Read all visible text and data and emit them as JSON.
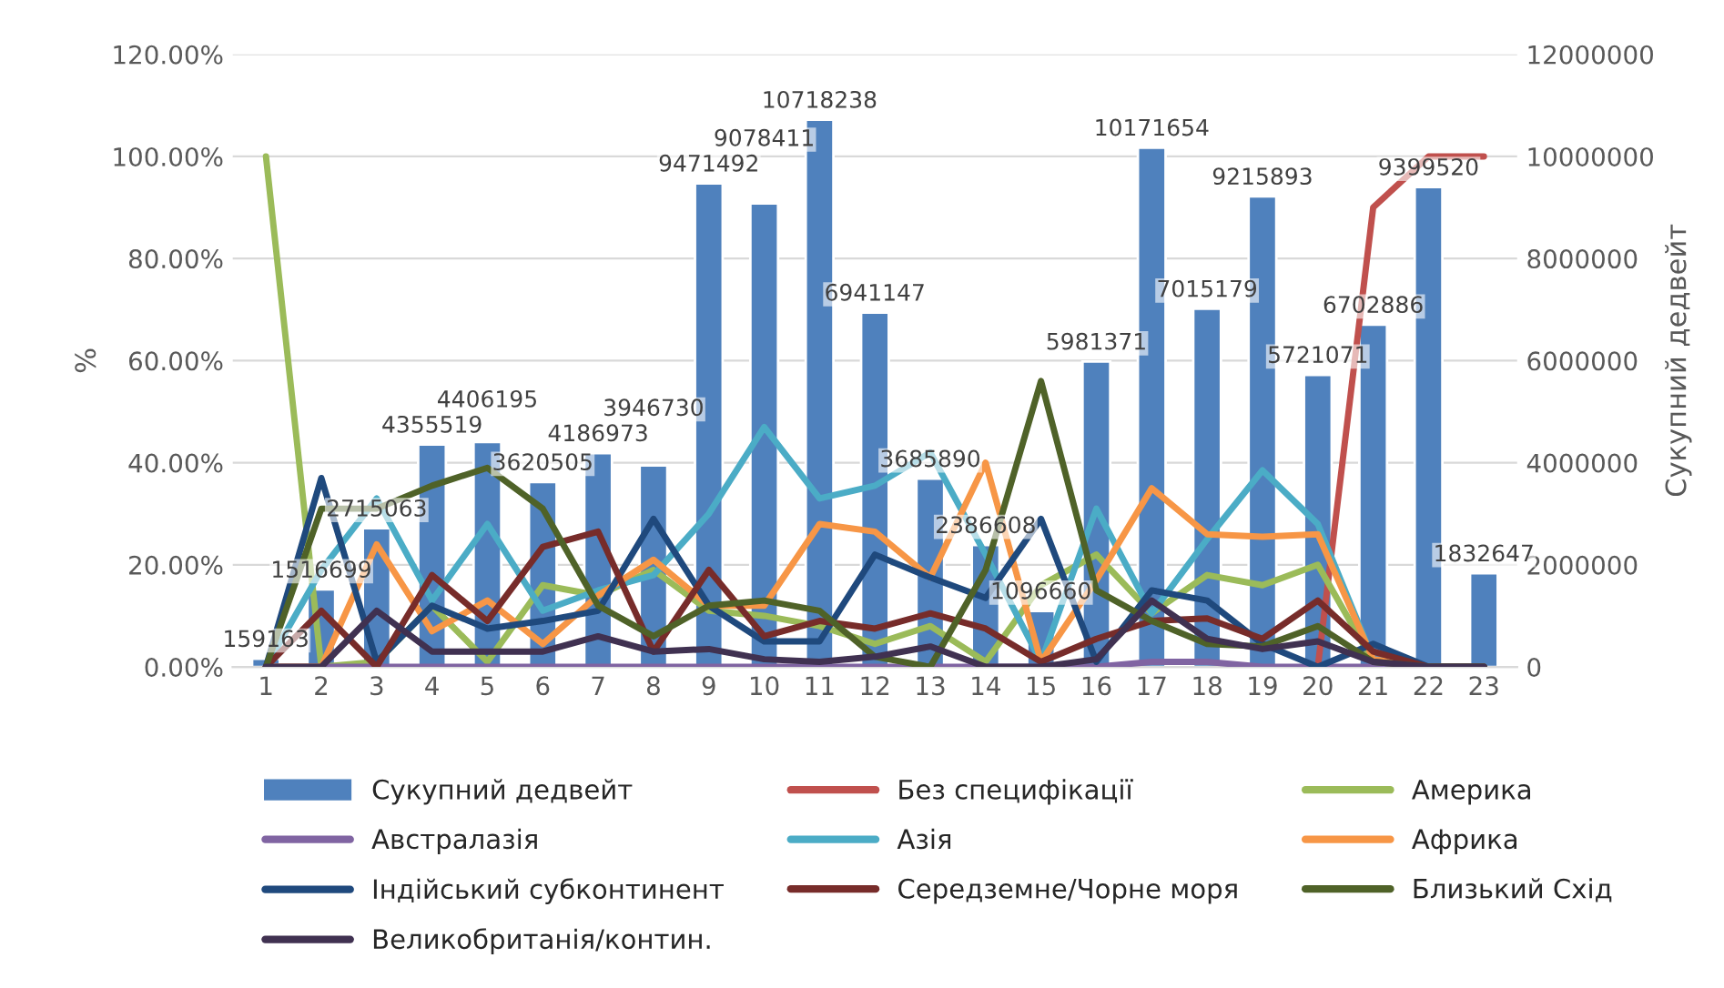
{
  "chart_data": {
    "type": "line",
    "ylabel": "%",
    "y2label": "Сукупний дедвейт",
    "categories": [
      "1",
      "2",
      "3",
      "4",
      "5",
      "6",
      "7",
      "8",
      "9",
      "10",
      "11",
      "12",
      "13",
      "14",
      "15",
      "16",
      "17",
      "18",
      "19",
      "20",
      "21",
      "22",
      "23"
    ],
    "ylim": [
      0,
      120
    ],
    "yticks": [
      {
        "value": 0,
        "label": "0.00%"
      },
      {
        "value": 20,
        "label": "20.00%"
      },
      {
        "value": 40,
        "label": "40.00%"
      },
      {
        "value": 60,
        "label": "60.00%"
      },
      {
        "value": 80,
        "label": "80.00%"
      },
      {
        "value": 100,
        "label": "100.00%"
      },
      {
        "value": 120,
        "label": "120.00%"
      }
    ],
    "y2lim": [
      0,
      12000000
    ],
    "y2ticks": [
      0,
      2000000,
      4000000,
      6000000,
      8000000,
      10000000,
      12000000
    ],
    "grid": "y",
    "legend": "bottom",
    "series": [
      {
        "name": "Сукупний дедвейт",
        "type": "bar",
        "axis": "y2",
        "color": "#4f81bd",
        "values": [
          159163,
          1516699,
          2715063,
          4355519,
          4406195,
          3620505,
          4186973,
          3946730,
          9471492,
          9078411,
          10718238,
          6941147,
          3685890,
          2386608,
          1096660,
          5981371,
          10171654,
          7015179,
          9215893,
          5721071,
          6702886,
          9399520,
          1832647
        ],
        "value_labels": [
          "159163",
          "1516699",
          "2715063",
          "4355519",
          "4406195",
          "3620505",
          "4186973",
          "3946730",
          "9471492",
          "9078411",
          "10718238",
          "6941147",
          "3685890",
          "2386608",
          "1096660",
          "5981371",
          "10171654",
          "7015179",
          "9215893",
          "5721071",
          "6702886",
          "9399520",
          "1832647"
        ]
      },
      {
        "name": "Без специфікації",
        "color": "#c0504d",
        "values": [
          null,
          null,
          null,
          null,
          null,
          null,
          null,
          null,
          null,
          null,
          null,
          null,
          null,
          null,
          null,
          null,
          null,
          null,
          null,
          0,
          90,
          100,
          100
        ]
      },
      {
        "name": "Америка",
        "color": "#9bbb59",
        "values": [
          100,
          0,
          1,
          12,
          1,
          16,
          14,
          19,
          11,
          10,
          8,
          4.5,
          8,
          1,
          16,
          22,
          10.5,
          18,
          16,
          20,
          1,
          0,
          0
        ]
      },
      {
        "name": "Австралазія",
        "color": "#8064a2",
        "values": [
          0,
          0,
          0,
          0,
          0,
          0,
          0,
          0,
          0,
          0,
          0,
          0,
          0,
          0,
          0,
          0,
          1,
          1,
          0,
          0,
          0,
          0,
          0
        ]
      },
      {
        "name": "Азія",
        "color": "#4bacc6",
        "values": [
          0,
          19,
          33,
          13,
          28,
          11,
          15,
          18,
          30,
          47,
          33,
          35.5,
          42,
          22,
          1,
          31,
          10.5,
          25,
          38.5,
          28,
          1.5,
          0,
          0
        ]
      },
      {
        "name": "Африка",
        "color": "#f79646",
        "values": [
          0,
          0,
          24,
          7,
          13,
          4.5,
          14,
          21,
          12,
          12,
          28,
          26.5,
          17.5,
          40,
          1,
          17,
          35,
          26,
          25.5,
          26,
          1.5,
          0,
          0
        ]
      },
      {
        "name": "Індійський субконтинент",
        "color": "#1f497d",
        "values": [
          0,
          37,
          1,
          12,
          7.5,
          9,
          11,
          29,
          12,
          5,
          5,
          22,
          17.5,
          13.5,
          29,
          1,
          15,
          13,
          4.5,
          0,
          4.5,
          0,
          0
        ]
      },
      {
        "name": "Середземне/Чорне моря",
        "color": "#772c2a",
        "values": [
          0,
          11,
          0,
          18,
          9,
          23.5,
          26.5,
          3,
          19,
          6,
          9,
          7.5,
          10.5,
          7.5,
          1,
          5.5,
          9,
          9.5,
          5.5,
          13,
          3,
          0,
          0
        ]
      },
      {
        "name": "Близький Схід",
        "color": "#4f6228",
        "values": [
          0,
          31,
          31,
          35.5,
          39,
          31,
          12,
          6,
          12,
          13,
          11,
          2,
          0,
          19,
          56,
          15,
          9,
          4.5,
          4,
          8,
          1,
          0,
          0
        ]
      },
      {
        "name": "Великобританія/контин.",
        "color": "#403151",
        "values": [
          0,
          0,
          11,
          3,
          3,
          3,
          6,
          3,
          3.5,
          1.5,
          1,
          2,
          4,
          0,
          0,
          1.5,
          13,
          5.5,
          3.5,
          5,
          1,
          0,
          0
        ]
      }
    ]
  }
}
